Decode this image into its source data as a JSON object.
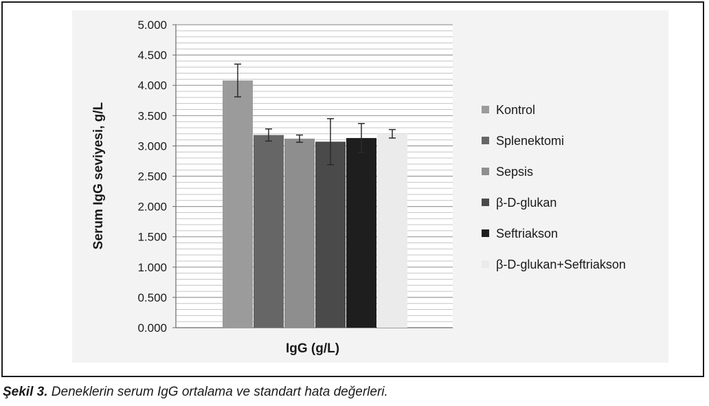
{
  "chart_data": {
    "type": "bar",
    "title": "",
    "xlabel": "IgG (g/L)",
    "ylabel": "Serum IgG seviyesi, g/L",
    "ylim": [
      0,
      5
    ],
    "yticks": [
      "0.000",
      "0.500",
      "1.000",
      "1.500",
      "2.000",
      "2.500",
      "3.000",
      "3.500",
      "4.000",
      "4.500",
      "5.000"
    ],
    "minor_grid_step": 0.1,
    "grid": true,
    "legend_position": "right",
    "series": [
      {
        "name": "Kontrol",
        "value": 4.08,
        "error": 0.27,
        "color": "#9b9b9b"
      },
      {
        "name": "Splenektomi",
        "value": 3.18,
        "error": 0.1,
        "color": "#666666"
      },
      {
        "name": "Sepsis",
        "value": 3.12,
        "error": 0.06,
        "color": "#8e8e8e"
      },
      {
        "name": "β-D-glukan",
        "value": 3.07,
        "error": 0.38,
        "color": "#4a4a4a"
      },
      {
        "name": "Seftriakson",
        "value": 3.13,
        "error": 0.24,
        "color": "#1e1e1e"
      },
      {
        "name": "β-D-glukan+Seftriakson",
        "value": 3.2,
        "error": 0.07,
        "color": "#ebebeb"
      }
    ]
  },
  "caption": {
    "figure_number": "Şekil 3.",
    "text": "Deneklerin serum IgG ortalama ve standart hata değerleri."
  }
}
